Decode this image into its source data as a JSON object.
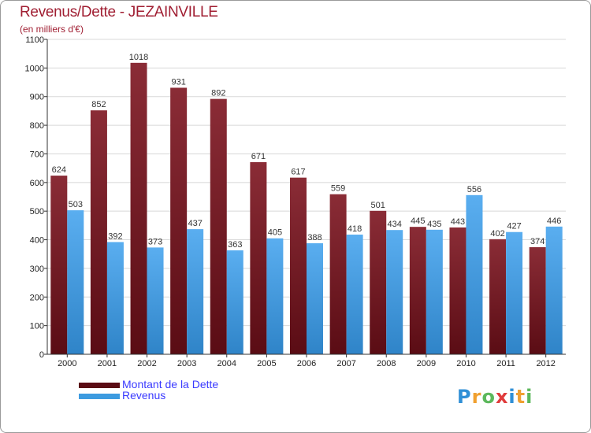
{
  "title": "Revenus/Dette - JEZAINVILLE",
  "subtitle": "(en milliers d'€)",
  "logo": {
    "text": "Proxiti",
    "letters": [
      {
        "ch": "P",
        "color": "#2f8fd6"
      },
      {
        "ch": "r",
        "color": "#f0a030"
      },
      {
        "ch": "o",
        "color": "#5cb85c"
      },
      {
        "ch": "x",
        "color": "#e03c3c"
      },
      {
        "ch": "i",
        "color": "#2f8fd6"
      },
      {
        "ch": "t",
        "color": "#f0a030"
      },
      {
        "ch": "i",
        "color": "#5cb85c"
      }
    ]
  },
  "chart_data": {
    "type": "bar",
    "title": "Revenus/Dette - JEZAINVILLE",
    "ylabel": "",
    "xlabel": "",
    "ylim": [
      0,
      1100
    ],
    "yticks": [
      0,
      100,
      200,
      300,
      400,
      500,
      600,
      700,
      800,
      900,
      1000,
      1100
    ],
    "categories": [
      "2000",
      "2001",
      "2002",
      "2003",
      "2004",
      "2005",
      "2006",
      "2007",
      "2008",
      "2009",
      "2010",
      "2011",
      "2012"
    ],
    "series": [
      {
        "name": "Montant de la Dette",
        "color": "#7a1e28",
        "values": [
          624,
          852,
          1018,
          931,
          892,
          671,
          617,
          559,
          501,
          445,
          443,
          402,
          374
        ]
      },
      {
        "name": "Revenus",
        "color": "#3d9be0",
        "values": [
          503,
          392,
          373,
          437,
          363,
          405,
          388,
          418,
          434,
          435,
          556,
          427,
          446
        ]
      }
    ],
    "grid": true,
    "legend": "bottom-left"
  }
}
